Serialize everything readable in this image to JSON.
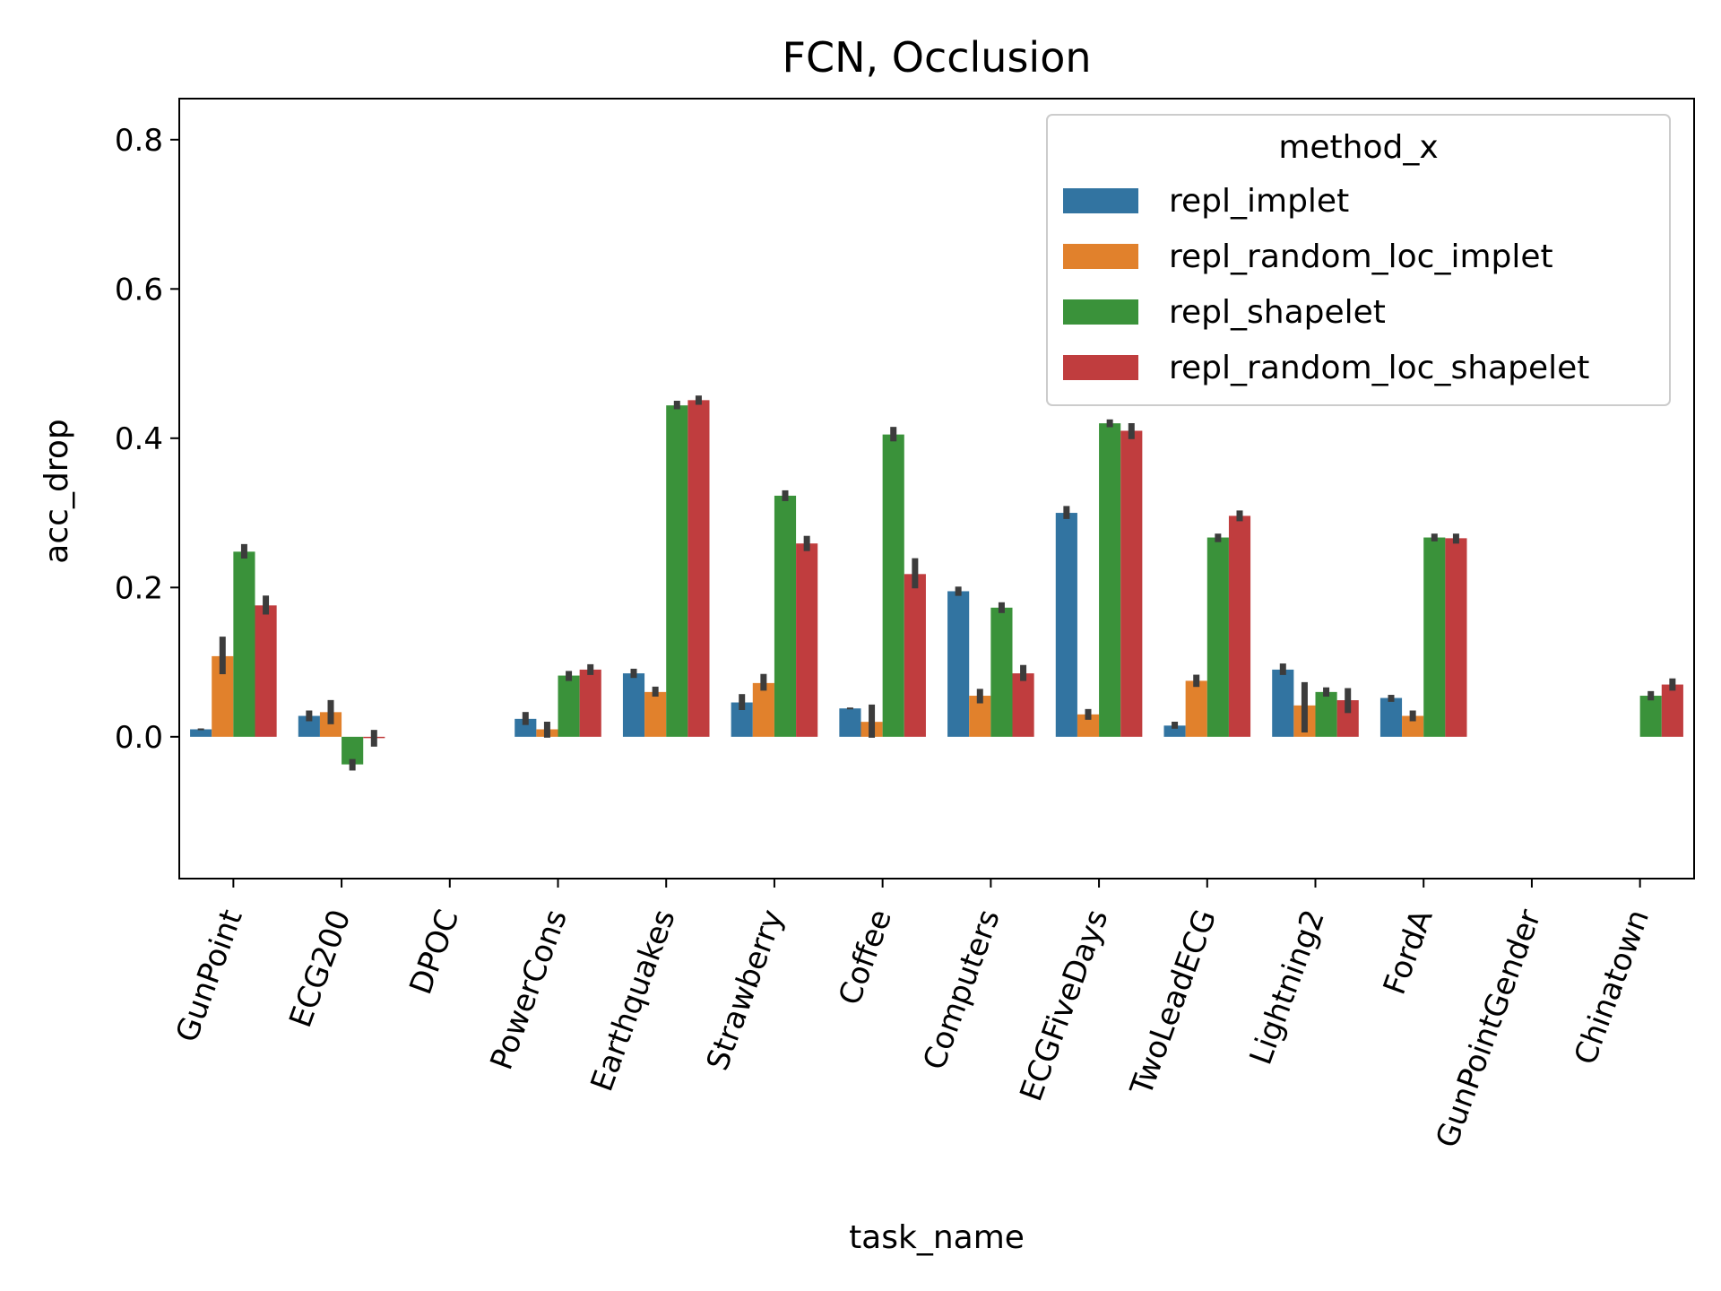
{
  "chart_data": {
    "type": "bar",
    "title": "FCN, Occlusion",
    "xlabel": "task_name",
    "ylabel": "acc_drop",
    "ylim": [
      -0.19,
      0.855
    ],
    "yticks": [
      "0.0",
      "0.2",
      "0.4",
      "0.6",
      "0.8"
    ],
    "ytick_values": [
      0.0,
      0.2,
      0.4,
      0.6,
      0.8
    ],
    "grid": false,
    "legend_title": "method_x",
    "legend_position": "upper right",
    "categories": [
      "GunPoint",
      "ECG200",
      "DPOC",
      "PowerCons",
      "Earthquakes",
      "Strawberry",
      "Coffee",
      "Computers",
      "ECGFiveDays",
      "TwoLeadECG",
      "Lightning2",
      "FordA",
      "GunPointGender",
      "Chinatown"
    ],
    "series": [
      {
        "name": "repl_implet",
        "color": "#3274a1",
        "values": [
          0.01,
          0.028,
          null,
          0.024,
          0.085,
          0.046,
          0.038,
          0.195,
          0.3,
          0.015,
          0.09,
          0.052,
          null,
          null
        ],
        "errors": [
          [
            0.01,
            0.01
          ],
          [
            0.022,
            0.034
          ],
          null,
          [
            0.017,
            0.032
          ],
          [
            0.08,
            0.09
          ],
          [
            0.037,
            0.056
          ],
          [
            0.038,
            0.038
          ],
          [
            0.19,
            0.2
          ],
          [
            0.293,
            0.308
          ],
          [
            0.012,
            0.019
          ],
          [
            0.084,
            0.097
          ],
          [
            0.048,
            0.055
          ],
          null,
          null
        ]
      },
      {
        "name": "repl_random_loc_implet",
        "color": "#e1812c",
        "values": [
          0.108,
          0.033,
          null,
          0.01,
          0.06,
          0.072,
          0.02,
          0.055,
          0.03,
          0.075,
          0.042,
          0.028,
          null,
          null
        ],
        "errors": [
          [
            0.085,
            0.133
          ],
          [
            0.018,
            0.048
          ],
          null,
          [
            0.0,
            0.019
          ],
          [
            0.055,
            0.066
          ],
          [
            0.063,
            0.083
          ],
          [
            0.0,
            0.042
          ],
          [
            0.046,
            0.063
          ],
          [
            0.024,
            0.036
          ],
          [
            0.068,
            0.082
          ],
          [
            0.007,
            0.072
          ],
          [
            0.022,
            0.034
          ],
          null,
          null
        ]
      },
      {
        "name": "repl_shapelet",
        "color": "#3a923a",
        "values": [
          0.248,
          -0.037,
          null,
          0.082,
          0.444,
          0.323,
          0.405,
          0.173,
          0.42,
          0.267,
          0.06,
          0.267,
          null,
          0.055
        ],
        "errors": [
          [
            0.24,
            0.257
          ],
          [
            -0.044,
            -0.031
          ],
          null,
          [
            0.076,
            0.087
          ],
          [
            0.44,
            0.449
          ],
          [
            0.317,
            0.329
          ],
          [
            0.397,
            0.414
          ],
          [
            0.167,
            0.179
          ],
          [
            0.416,
            0.424
          ],
          [
            0.262,
            0.271
          ],
          [
            0.055,
            0.065
          ],
          [
            0.263,
            0.271
          ],
          null,
          [
            0.05,
            0.06
          ]
        ]
      },
      {
        "name": "repl_random_loc_shapelet",
        "color": "#c03d3e",
        "values": [
          0.176,
          0.0,
          null,
          0.09,
          0.451,
          0.259,
          0.218,
          0.085,
          0.41,
          0.296,
          0.049,
          0.266,
          null,
          0.07
        ],
        "errors": [
          [
            0.165,
            0.188
          ],
          [
            -0.012,
            0.008
          ],
          null,
          [
            0.084,
            0.096
          ],
          [
            0.446,
            0.456
          ],
          [
            0.25,
            0.268
          ],
          [
            0.2,
            0.238
          ],
          [
            0.076,
            0.095
          ],
          [
            0.4,
            0.419
          ],
          [
            0.29,
            0.302
          ],
          [
            0.033,
            0.064
          ],
          [
            0.26,
            0.271
          ],
          null,
          [
            0.063,
            0.077
          ]
        ]
      }
    ]
  }
}
